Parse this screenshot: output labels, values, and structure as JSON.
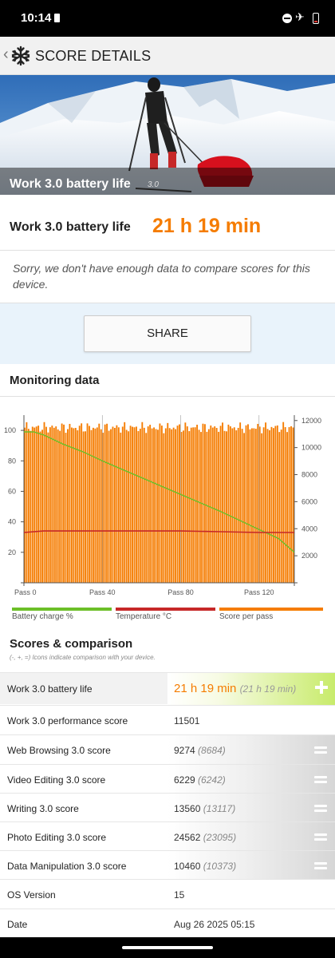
{
  "status_bar": {
    "time": "10:14",
    "icons": [
      "sim-card-icon",
      "do-not-disturb-icon",
      "airplane-mode-icon",
      "battery-low-icon"
    ]
  },
  "app_bar": {
    "title": "SCORE DETAILS",
    "back_icon": "chevron-left-icon",
    "logo_icon": "snowflake-icon"
  },
  "hero": {
    "caption": "Work 3.0 battery life",
    "caption_suffix": "3.0"
  },
  "result": {
    "label": "Work 3.0 battery life",
    "value": "21 h 19 min",
    "message": "Sorry, we don't have enough data to compare scores for this device."
  },
  "share_button": {
    "label": "SHARE"
  },
  "monitoring": {
    "title": "Monitoring data"
  },
  "chart_data": {
    "type": "bar",
    "left_axis": {
      "ticks": [
        "100",
        "80",
        "60",
        "40",
        "20"
      ],
      "values": [
        100,
        80,
        60,
        40,
        20
      ],
      "ylim": [
        0,
        110
      ]
    },
    "right_axis": {
      "ticks": [
        "12000",
        "10000",
        "8000",
        "6000",
        "4000",
        "2000"
      ],
      "values": [
        12000,
        10000,
        8000,
        6000,
        4000,
        2000
      ],
      "ylim": [
        0,
        12400
      ]
    },
    "x_ticks": [
      "Pass 0",
      "Pass 40",
      "Pass 80",
      "Pass 120"
    ],
    "x_tick_values": [
      0,
      40,
      80,
      120
    ],
    "passes": 138,
    "series": [
      {
        "name": "Battery charge %",
        "color": "#6cbf28",
        "axis": "left",
        "points": [
          [
            0,
            99
          ],
          [
            5,
            99
          ],
          [
            10,
            97
          ],
          [
            20,
            91
          ],
          [
            30,
            86
          ],
          [
            40,
            80
          ],
          [
            60,
            69
          ],
          [
            80,
            58
          ],
          [
            100,
            47
          ],
          [
            120,
            35
          ],
          [
            130,
            29
          ],
          [
            138,
            20
          ]
        ]
      },
      {
        "name": "Temperature °C",
        "color": "#c62828",
        "axis": "left",
        "points": [
          [
            0,
            33
          ],
          [
            10,
            34
          ],
          [
            40,
            34
          ],
          [
            80,
            34
          ],
          [
            100,
            33.5
          ],
          [
            120,
            33
          ],
          [
            138,
            33
          ]
        ]
      },
      {
        "name": "Score per pass",
        "color": "#f57c00",
        "axis": "right",
        "typical": 11500,
        "range": [
          11050,
          11900
        ]
      }
    ]
  },
  "legend": [
    {
      "label": "Battery charge %",
      "color": "#6cbf28"
    },
    {
      "label": "Temperature °C",
      "color": "#c62828"
    },
    {
      "label": "Score per pass",
      "color": "#f57c00"
    }
  ],
  "scores": {
    "title": "Scores & comparison",
    "note": "(-, +, =) Icons indicate comparison with your device.",
    "rows": [
      {
        "name": "Work 3.0 battery life",
        "value": "21 h 19 min",
        "compare": "(21 h 19 min)",
        "indicator": "plus-icon"
      },
      {
        "name": "Work 3.0 performance score",
        "value": "11501",
        "compare": ""
      },
      {
        "name": "Web Browsing 3.0 score",
        "value": "9274",
        "compare": "(8684)",
        "indicator": "equals-icon"
      },
      {
        "name": "Video Editing 3.0 score",
        "value": "6229",
        "compare": "(6242)",
        "indicator": "equals-icon"
      },
      {
        "name": "Writing 3.0 score",
        "value": "13560",
        "compare": "(13117)",
        "indicator": "equals-icon"
      },
      {
        "name": "Photo Editing 3.0 score",
        "value": "24562",
        "compare": "(23095)",
        "indicator": "equals-icon"
      },
      {
        "name": "Data Manipulation 3.0 score",
        "value": "10460",
        "compare": "(10373)",
        "indicator": "equals-icon"
      },
      {
        "name": "OS Version",
        "value": "15",
        "compare": ""
      },
      {
        "name": "Date",
        "value": "Aug 26 2025 05:15",
        "compare": ""
      }
    ]
  }
}
